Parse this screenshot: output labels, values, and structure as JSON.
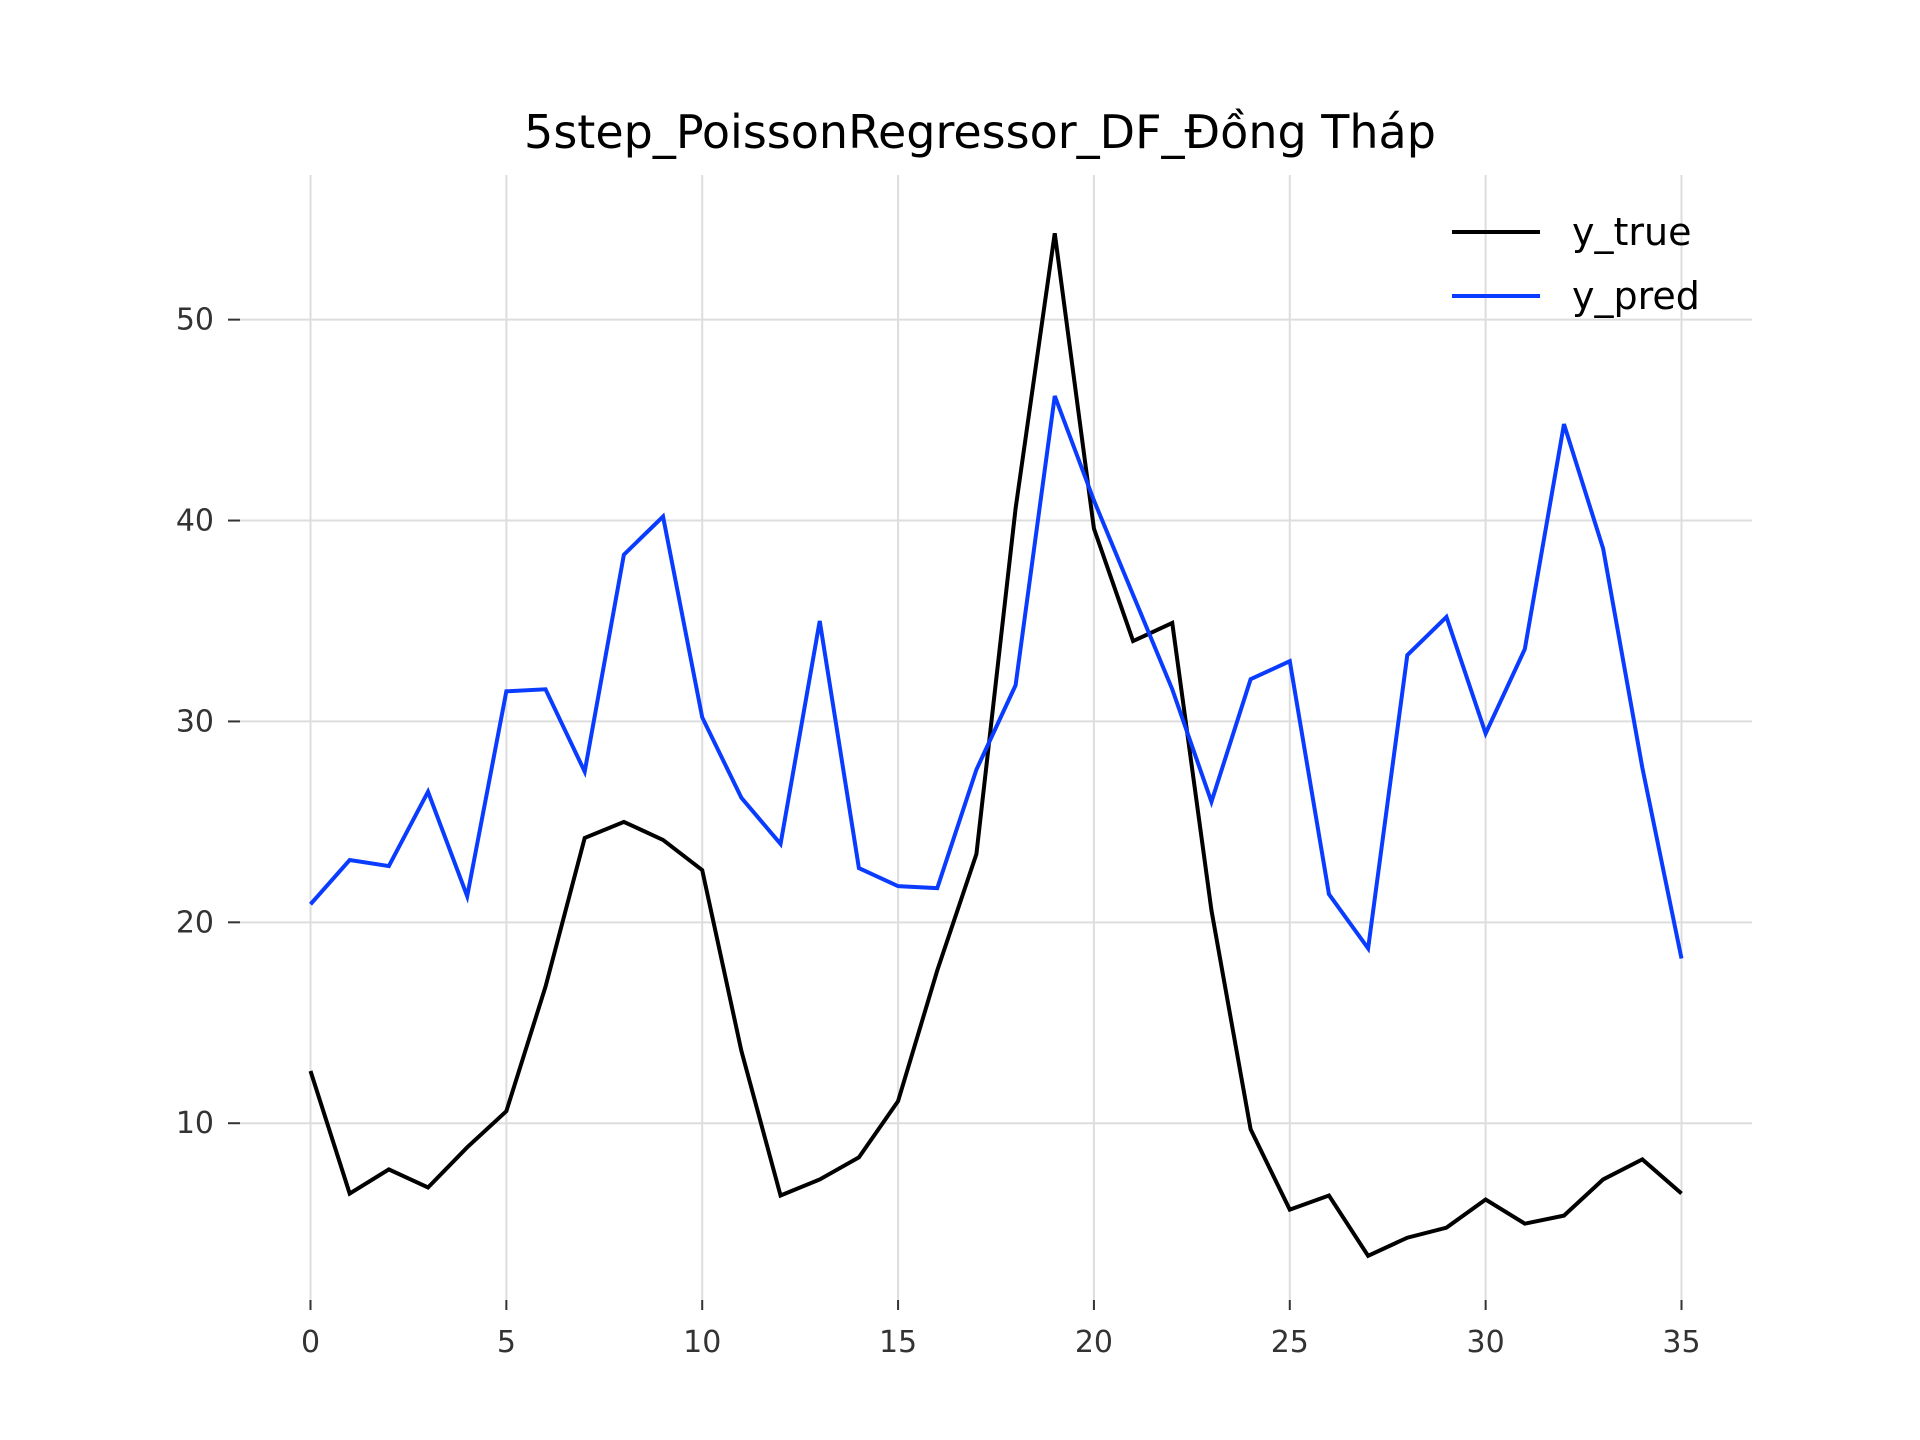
{
  "chart_data": {
    "type": "line",
    "title": "5step_PoissonRegressor_DF_Đồng Tháp",
    "xlabel": "",
    "ylabel": "",
    "x": [
      0,
      1,
      2,
      3,
      4,
      5,
      6,
      7,
      8,
      9,
      10,
      11,
      12,
      13,
      14,
      15,
      16,
      17,
      18,
      19,
      20,
      21,
      22,
      23,
      24,
      25,
      26,
      27,
      28,
      29,
      30,
      31,
      32,
      33,
      34,
      35
    ],
    "xlim": [
      -1.8,
      36.8
    ],
    "ylim": [
      1.2,
      57.2
    ],
    "xticks": [
      0,
      5,
      10,
      15,
      20,
      25,
      30,
      35
    ],
    "yticks": [
      10,
      20,
      30,
      40,
      50
    ],
    "grid": true,
    "legend_position": "top-right",
    "series": [
      {
        "name": "y_true",
        "color": "#000000",
        "values": [
          12.6,
          6.5,
          7.7,
          6.8,
          8.8,
          10.6,
          16.8,
          24.2,
          25.0,
          24.1,
          22.6,
          13.6,
          6.4,
          7.2,
          8.3,
          11.1,
          17.6,
          23.4,
          40.6,
          54.3,
          39.6,
          34.0,
          34.9,
          20.6,
          9.7,
          5.7,
          6.4,
          3.4,
          4.3,
          4.8,
          6.2,
          5.0,
          5.4,
          7.2,
          8.2,
          6.5
        ]
      },
      {
        "name": "y_pred",
        "color": "#0a3cff",
        "values": [
          20.9,
          23.1,
          22.8,
          26.5,
          21.3,
          31.5,
          31.6,
          27.5,
          38.3,
          40.2,
          30.2,
          26.2,
          23.9,
          35.0,
          22.7,
          21.8,
          21.7,
          27.6,
          31.8,
          46.2,
          41.0,
          36.3,
          31.6,
          26.0,
          32.1,
          33.0,
          21.4,
          18.7,
          33.3,
          35.2,
          29.4,
          33.6,
          44.8,
          38.6,
          27.7,
          18.2
        ]
      }
    ]
  }
}
